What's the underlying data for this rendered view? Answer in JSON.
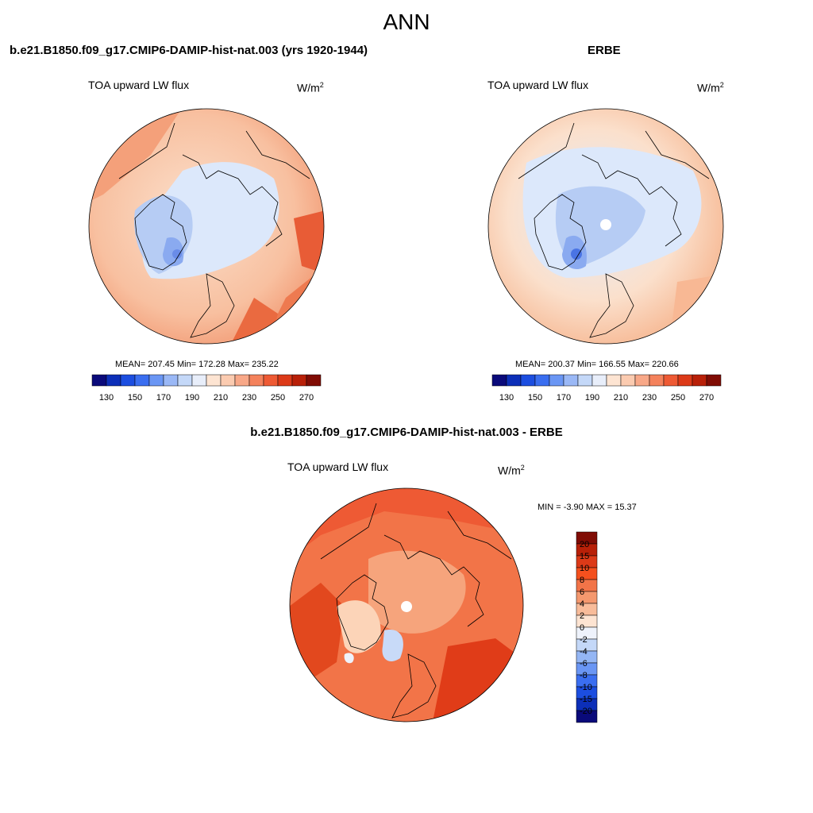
{
  "title": "ANN",
  "panels": {
    "model": {
      "title": "b.e21.B1850.f09_g17.CMIP6-DAMIP-hist-nat.003 (yrs 1920-1944)",
      "variable": "TOA upward LW flux",
      "units_base": "W/m",
      "units_exp": "2",
      "stats": "MEAN= 207.45  Min= 172.28  Max= 235.22"
    },
    "obs": {
      "title": "ERBE",
      "variable": "TOA upward LW flux",
      "units_base": "W/m",
      "units_exp": "2",
      "stats": "MEAN= 200.37  Min= 166.55  Max= 220.66"
    },
    "diff": {
      "title": "b.e21.B1850.f09_g17.CMIP6-DAMIP-hist-nat.003 - ERBE",
      "variable": "TOA upward LW flux",
      "units_base": "W/m",
      "units_exp": "2",
      "stats": "MIN =  -3.90 MAX =  15.37"
    }
  },
  "abs_colorbar": {
    "colors": [
      "#0a0a7a",
      "#0c2fb8",
      "#1c4ee0",
      "#3a6ef0",
      "#6a96f4",
      "#9ab8f6",
      "#c4d8f8",
      "#e8eefa",
      "#fde4d2",
      "#fbcbb0",
      "#f8a888",
      "#f4825c",
      "#ee5a34",
      "#dc3a18",
      "#b82008",
      "#800c04"
    ],
    "ticks": [
      "130",
      "150",
      "170",
      "190",
      "210",
      "230",
      "250",
      "270"
    ]
  },
  "diff_colorbar": {
    "colors": [
      "#800c04",
      "#b82008",
      "#dc3a18",
      "#f4501e",
      "#f27448",
      "#f4986e",
      "#f8bc9a",
      "#fde4d2",
      "#eef2fb",
      "#c4d8f8",
      "#94b6f4",
      "#6a96f4",
      "#3a6ef0",
      "#1c4ee0",
      "#0c2fb8",
      "#0a0a7a"
    ],
    "ticks": [
      "20",
      "15",
      "10",
      "8",
      "6",
      "4",
      "2",
      "0",
      "-2",
      "-4",
      "-6",
      "-8",
      "-10",
      "-15",
      "-20"
    ]
  }
}
